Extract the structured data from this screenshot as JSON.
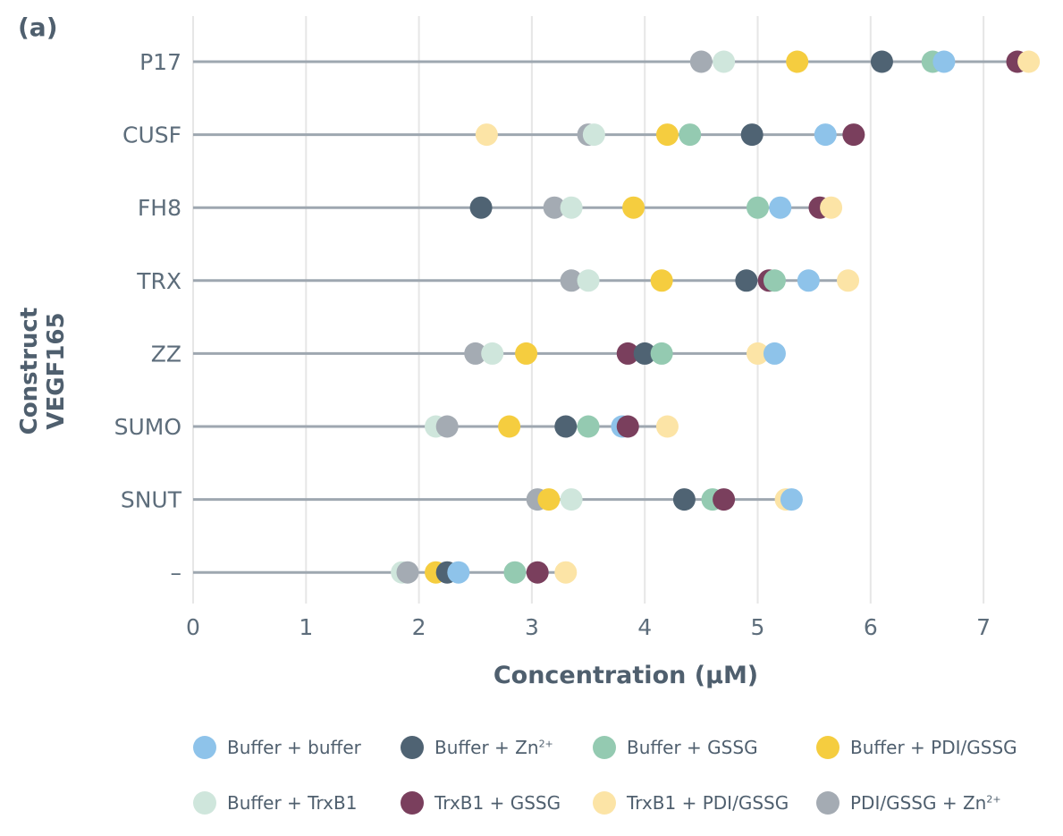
{
  "panel_label": "(a)",
  "chart_data": {
    "type": "scatter",
    "subtype": "dot-plot",
    "title": "",
    "xlabel": "Concentration (μM)",
    "ylabel_line1": "Construct",
    "ylabel_line2": "VEGF165",
    "xlim": [
      0,
      7.55
    ],
    "xticks": [
      0,
      1,
      2,
      3,
      4,
      5,
      6,
      7
    ],
    "grid": "vertical",
    "categories": [
      "P17",
      "CUSF",
      "FH8",
      "TRX",
      "ZZ",
      "SUMO",
      "SNUT",
      "–"
    ],
    "series": [
      {
        "name": "Buffer + buffer",
        "color": "#8ec3ea",
        "values": [
          6.65,
          5.6,
          5.2,
          5.45,
          5.15,
          3.8,
          5.3,
          2.35
        ]
      },
      {
        "name": "Buffer + Zn²⁺",
        "color": "#4f6373",
        "values": [
          6.1,
          4.95,
          2.55,
          4.9,
          4.0,
          3.3,
          4.35,
          2.25
        ]
      },
      {
        "name": "Buffer + GSSG",
        "color": "#94cab1",
        "values": [
          6.55,
          4.4,
          5.0,
          5.15,
          4.15,
          3.5,
          4.6,
          2.85
        ]
      },
      {
        "name": "Buffer + PDI/GSSG",
        "color": "#f5cd3f",
        "values": [
          5.35,
          4.2,
          3.9,
          4.15,
          2.95,
          2.8,
          3.15,
          2.15
        ]
      },
      {
        "name": "Buffer + TrxB1",
        "color": "#cfe6dc",
        "values": [
          4.7,
          3.55,
          3.35,
          3.5,
          2.65,
          2.15,
          3.35,
          1.85
        ]
      },
      {
        "name": "TrxB1 + GSSG",
        "color": "#7a3f5d",
        "values": [
          7.3,
          5.85,
          5.55,
          5.1,
          3.85,
          3.85,
          4.7,
          3.05
        ]
      },
      {
        "name": "TrxB1 + PDI/GSSG",
        "color": "#fce4a6",
        "values": [
          7.4,
          2.6,
          5.65,
          5.8,
          5.0,
          4.2,
          5.25,
          3.3
        ]
      },
      {
        "name": "PDI/GSSG + Zn²⁺",
        "color": "#a4abb3",
        "values": [
          4.5,
          3.5,
          3.2,
          3.35,
          2.5,
          2.25,
          3.05,
          1.9
        ]
      }
    ],
    "legend_position": "bottom",
    "legend": [
      {
        "label": "Buffer + buffer",
        "color": "#8ec3ea"
      },
      {
        "label": "Buffer + Zn",
        "sup": "2+",
        "color": "#4f6373"
      },
      {
        "label": "Buffer + GSSG",
        "color": "#94cab1"
      },
      {
        "label": "Buffer + PDI/GSSG",
        "color": "#f5cd3f"
      },
      {
        "label": "Buffer + TrxB1",
        "color": "#cfe6dc"
      },
      {
        "label": "TrxB1 + GSSG",
        "color": "#7a3f5d"
      },
      {
        "label": "TrxB1 + PDI/GSSG",
        "color": "#fce4a6"
      },
      {
        "label": "PDI/GSSG + Zn",
        "sup": "2+",
        "color": "#a4abb3"
      }
    ]
  }
}
